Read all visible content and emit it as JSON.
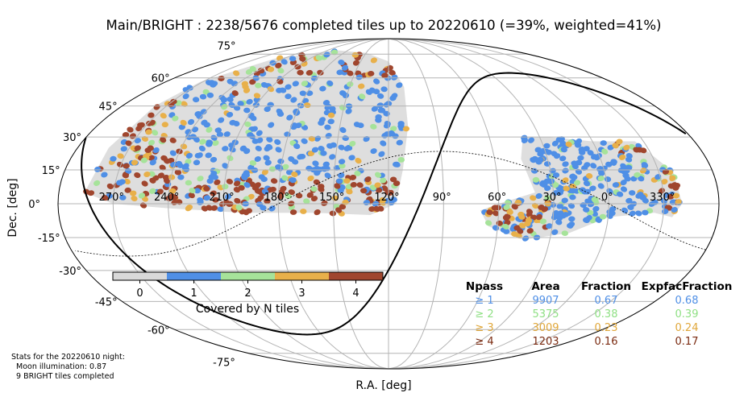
{
  "chart_data": {
    "type": "scatter",
    "title": "Main/BRIGHT : 2238/5676 completed tiles up to 20220610 (=39%, weighted=41%)",
    "xlabel": "R.A. [deg]",
    "ylabel": "Dec. [deg]",
    "projection": "mollweide",
    "xlim": [
      360,
      0
    ],
    "ylim": [
      -90,
      90
    ],
    "grid": true,
    "ra_ticks": [
      "270°",
      "240°",
      "210°",
      "180°",
      "150°",
      "120°",
      "90°",
      "60°",
      "30°",
      "0°",
      "330°"
    ],
    "dec_ticks": [
      "75°",
      "60°",
      "45°",
      "30°",
      "15°",
      "0°",
      "-15°",
      "-30°",
      "-45°",
      "-60°",
      "-75°"
    ],
    "colorbar": {
      "label": "Covered by N tiles",
      "ticks": [
        "0",
        "1",
        "2",
        "3",
        "4"
      ],
      "colors": [
        "#d9d9d9",
        "#4f8fe6",
        "#a6e39a",
        "#e8b04a",
        "#a0462e"
      ]
    },
    "stats_table": {
      "headers": [
        "Npass",
        "Area",
        "Fraction",
        "ExpfacFraction"
      ],
      "rows": [
        {
          "npass": "≥ 1",
          "area": "9907",
          "fraction": "0.67",
          "expfac": "0.68",
          "color": "#4f8fe6"
        },
        {
          "npass": "≥ 2",
          "area": "5375",
          "fraction": "0.38",
          "expfac": "0.39",
          "color": "#8fe084"
        },
        {
          "npass": "≥ 3",
          "area": "3009",
          "fraction": "0.23",
          "expfac": "0.24",
          "color": "#e0a73a"
        },
        {
          "npass": "≥ 4",
          "area": "1203",
          "fraction": "0.16",
          "expfac": "0.17",
          "color": "#7a2a10"
        }
      ]
    },
    "night_stats": [
      "Stats for the 20220610 night:",
      "Moon illumination: 0.87",
      "9 BRIGHT tiles completed"
    ]
  }
}
